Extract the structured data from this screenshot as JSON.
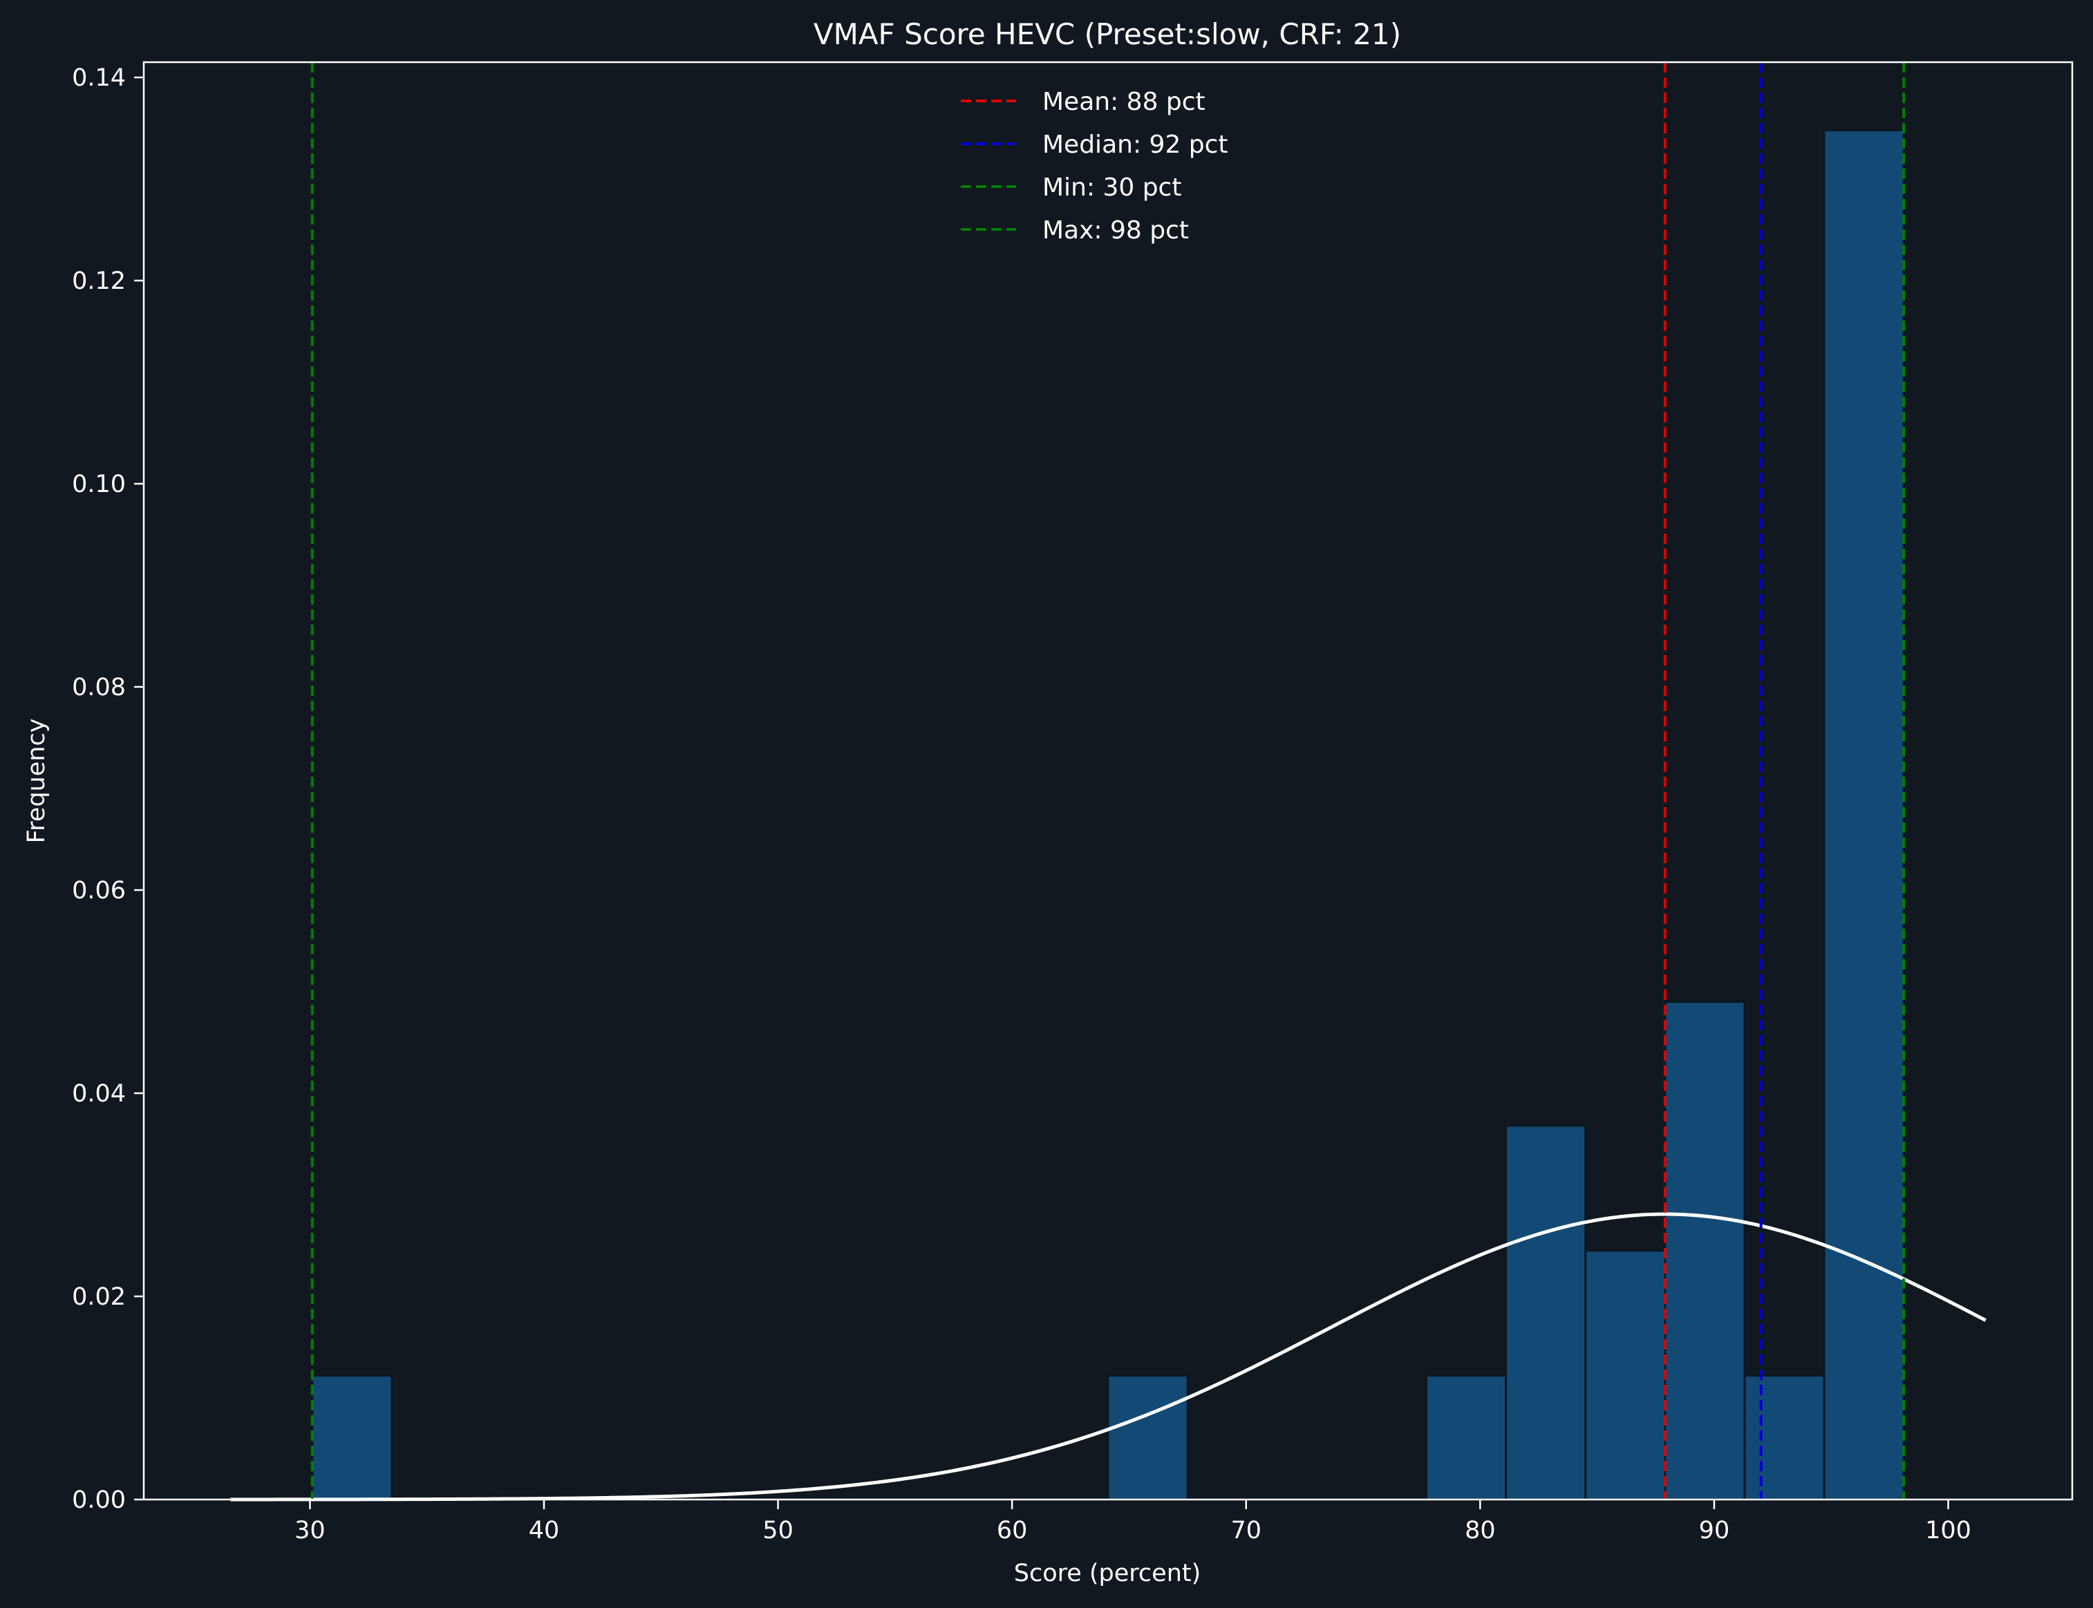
{
  "chart_data": {
    "type": "bar",
    "title": "VMAF Score HEVC (Preset:slow, CRF: 21)",
    "xlabel": "Score (percent)",
    "ylabel": "Frequency",
    "xlim": [
      22.9,
      105.3
    ],
    "ylim": [
      0,
      0.1415
    ],
    "x_ticks": [
      30,
      40,
      50,
      60,
      70,
      80,
      90,
      100
    ],
    "y_ticks": [
      0,
      0.02,
      0.04,
      0.06,
      0.08,
      0.1,
      0.12,
      0.14
    ],
    "x_tick_labels": [
      "30",
      "40",
      "50",
      "60",
      "70",
      "80",
      "90",
      "100"
    ],
    "y_tick_labels": [
      "0.00",
      "0.02",
      "0.04",
      "0.06",
      "0.08",
      "0.10",
      "0.12",
      "0.14"
    ],
    "histogram": {
      "bin_edges": [
        30.1,
        33.5,
        36.9,
        40.3,
        43.7,
        47.1,
        50.5,
        53.9,
        57.3,
        60.7,
        64.1,
        67.5,
        70.9,
        74.3,
        77.7,
        81.1,
        84.5,
        87.9,
        91.3,
        94.7,
        98.1
      ],
      "values": [
        0.0122,
        0,
        0,
        0,
        0,
        0,
        0,
        0,
        0,
        0,
        0.0122,
        0,
        0,
        0,
        0.0122,
        0.0368,
        0.0245,
        0.049,
        0.0122,
        0.1348
      ],
      "color": "#134a75",
      "edge_color": "#0b1722"
    },
    "density_curve": {
      "mean": 87.9,
      "std": 14.2,
      "x_range": [
        26.6,
        101.6
      ],
      "color": "#ffffff"
    },
    "reference_lines": [
      {
        "label": "Mean: 88 pct",
        "x": 87.9,
        "color": "#e00000"
      },
      {
        "label": "Median: 92 pct",
        "x": 92.0,
        "color": "#0000e0"
      },
      {
        "label": "Min: 30 pct",
        "x": 30.1,
        "color": "#008000"
      },
      {
        "label": "Max: 98 pct",
        "x": 98.1,
        "color": "#008000"
      }
    ],
    "legend": {
      "placement": "top-center"
    },
    "grid": false
  },
  "colors": {
    "background": "#111820",
    "axes": "#ffffff",
    "text": "#ffffff"
  }
}
